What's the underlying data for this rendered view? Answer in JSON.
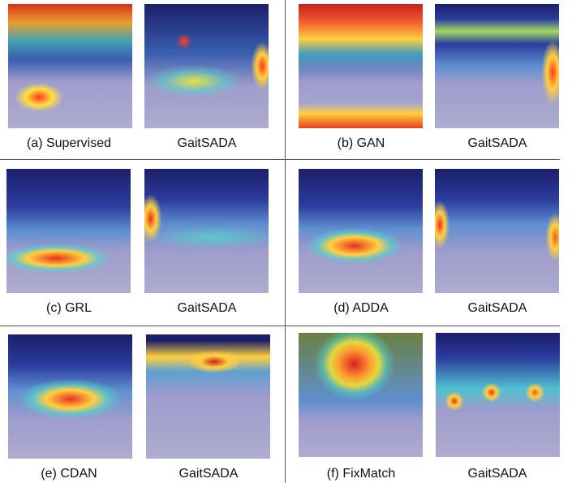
{
  "panels": [
    {
      "method": "(a) Supervised",
      "ours": "GaitSADA"
    },
    {
      "method": "(b) GAN",
      "ours": "GaitSADA"
    },
    {
      "method": "(c) GRL",
      "ours": "GaitSADA"
    },
    {
      "method": "(d) ADDA",
      "ours": "GaitSADA"
    },
    {
      "method": "(e) CDAN",
      "ours": "GaitSADA"
    },
    {
      "method": "(f) FixMatch",
      "ours": "GaitSADA"
    }
  ]
}
